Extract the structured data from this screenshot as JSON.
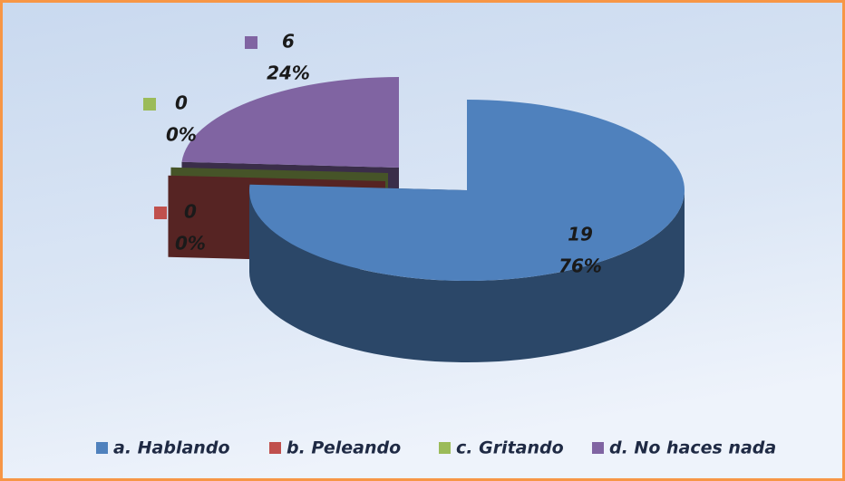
{
  "chart_data": {
    "type": "pie3d",
    "categories": [
      "a. Hablando",
      "b. Peleando",
      "c. Gritando",
      "d. No haces nada"
    ],
    "values": [
      19,
      0,
      0,
      6
    ],
    "percentages": [
      76,
      0,
      0,
      24
    ],
    "percentage_labels": [
      "76%",
      "0%",
      "0%",
      "24%"
    ],
    "colors": [
      "#4f81bd",
      "#c0504d",
      "#9bbb59",
      "#8064a2"
    ],
    "legend": "bottom"
  }
}
